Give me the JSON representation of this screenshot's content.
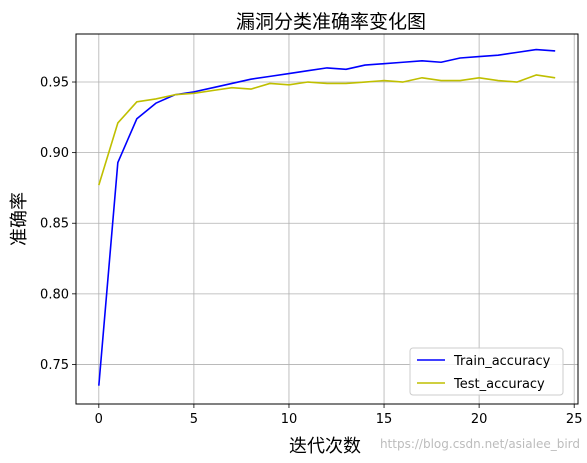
{
  "chart_data": {
    "type": "line",
    "title": "漏洞分类准确率变化图",
    "xlabel": "迭代次数",
    "ylabel": "准确率",
    "xlim": [
      -1.2,
      25.2
    ],
    "ylim": [
      0.722,
      0.984
    ],
    "xticks": [
      0,
      5,
      10,
      15,
      20,
      25
    ],
    "yticks": [
      0.75,
      0.8,
      0.85,
      0.9,
      0.95
    ],
    "xtick_labels": [
      "0",
      "5",
      "10",
      "15",
      "20",
      "25"
    ],
    "ytick_labels": [
      "0.75",
      "0.80",
      "0.85",
      "0.90",
      "0.95"
    ],
    "grid": true,
    "legend_position": "lower-right",
    "x": [
      0,
      1,
      2,
      3,
      4,
      5,
      6,
      7,
      8,
      9,
      10,
      11,
      12,
      13,
      14,
      15,
      16,
      17,
      18,
      19,
      20,
      21,
      22,
      23,
      24
    ],
    "series": [
      {
        "name": "Train_accuracy",
        "color": "#0000ff",
        "values": [
          0.735,
          0.893,
          0.924,
          0.935,
          0.941,
          0.943,
          0.946,
          0.949,
          0.952,
          0.954,
          0.956,
          0.958,
          0.96,
          0.959,
          0.962,
          0.963,
          0.964,
          0.965,
          0.964,
          0.967,
          0.968,
          0.969,
          0.971,
          0.973,
          0.972
        ]
      },
      {
        "name": "Test_accuracy",
        "color": "#bfbf00",
        "values": [
          0.877,
          0.921,
          0.936,
          0.938,
          0.941,
          0.942,
          0.944,
          0.946,
          0.945,
          0.949,
          0.948,
          0.95,
          0.949,
          0.949,
          0.95,
          0.951,
          0.95,
          0.953,
          0.951,
          0.951,
          0.953,
          0.951,
          0.95,
          0.955,
          0.953
        ]
      }
    ]
  },
  "watermark": "https://blog.csdn.net/asialee_bird"
}
